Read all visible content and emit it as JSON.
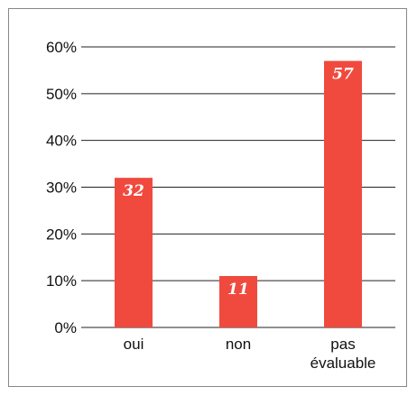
{
  "chart_data": {
    "type": "bar",
    "categories": [
      [
        "oui"
      ],
      [
        "non"
      ],
      [
        "pas",
        "évaluable"
      ]
    ],
    "values": [
      32,
      11,
      57
    ],
    "data_labels": [
      "32",
      "11",
      "57"
    ],
    "ylim": [
      0,
      60
    ],
    "yticks": [
      0,
      10,
      20,
      30,
      40,
      50,
      60
    ],
    "ytick_labels": [
      "0%",
      "10%",
      "20%",
      "30%",
      "40%",
      "50%",
      "60%"
    ],
    "grid": true,
    "bar_color": "#f04a3e",
    "grid_color": "#222222"
  }
}
